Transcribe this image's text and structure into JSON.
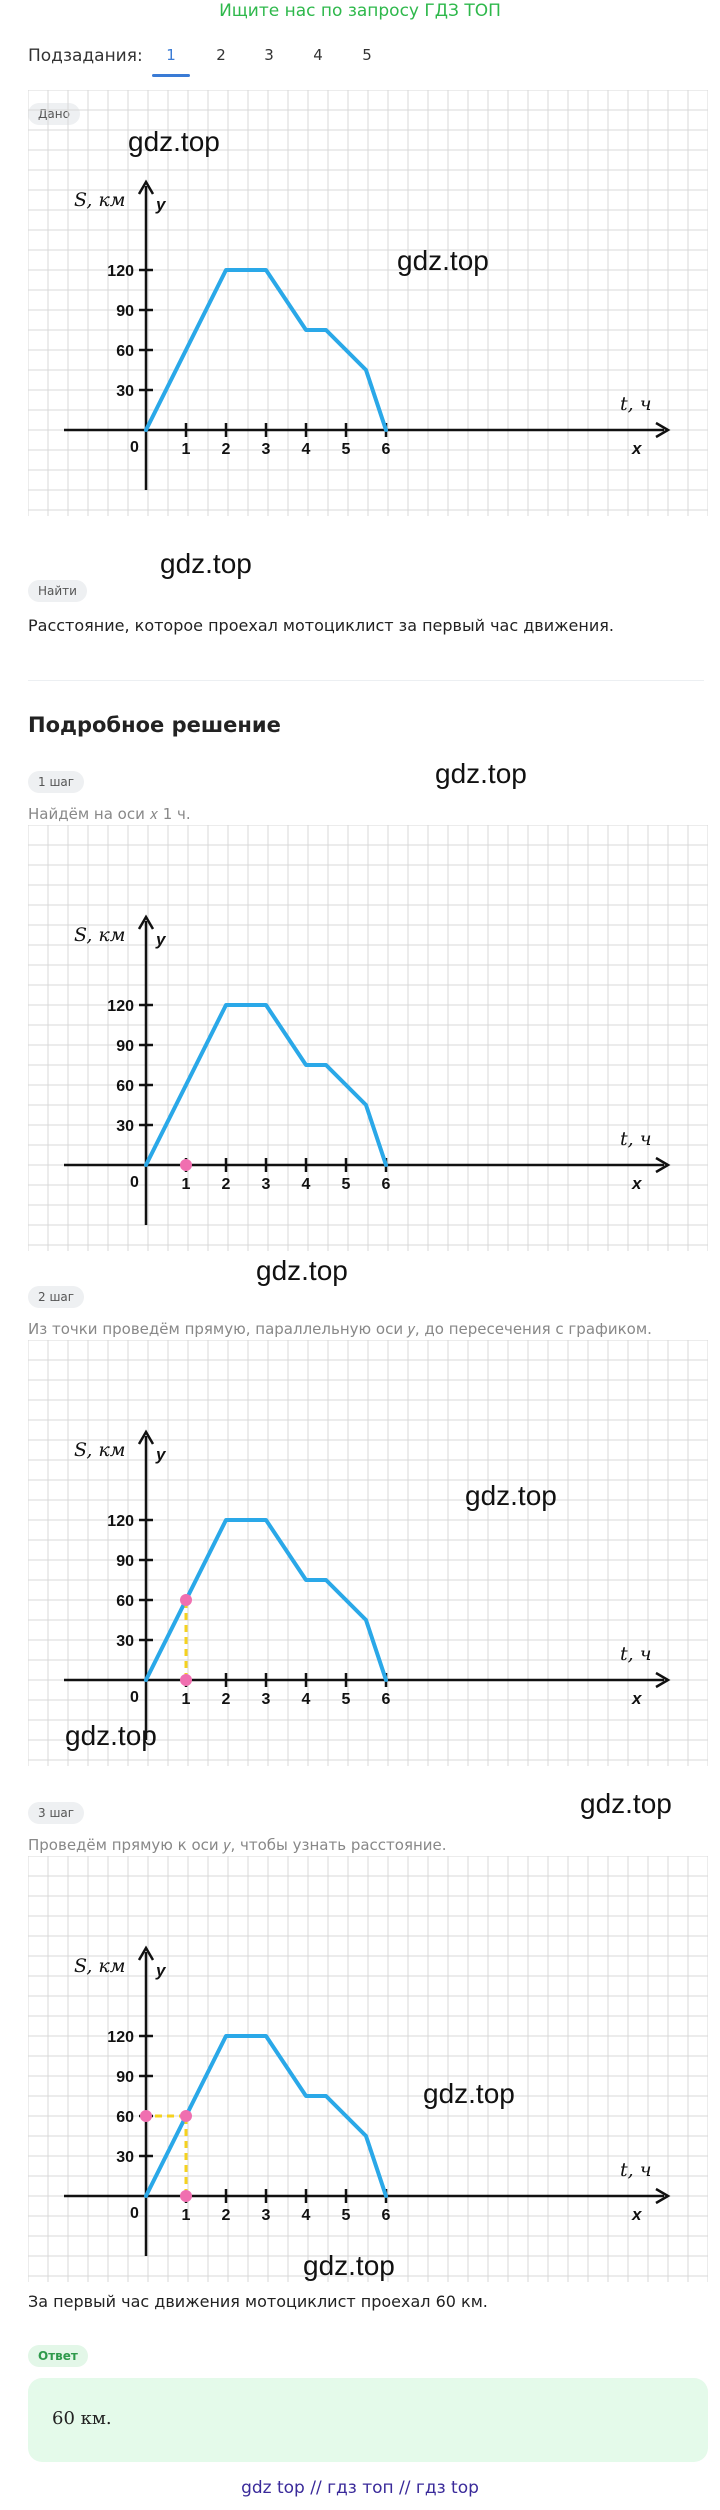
{
  "banner": "Ищите нас по запросу ГДЗ ТОП",
  "subtasks": {
    "label": "Подзадания:",
    "tabs": [
      "1",
      "2",
      "3",
      "4",
      "5"
    ],
    "active": 0
  },
  "given": {
    "chip": "Дано"
  },
  "find": {
    "chip": "Найти",
    "text": "Расстояние, которое проехал мотоциклист за первый час движения."
  },
  "solution": {
    "heading": "Подробное решение",
    "steps": [
      {
        "chip": "1 шаг",
        "text": "Найдём на оси 𝑥 1 ч."
      },
      {
        "chip": "2 шаг",
        "text": "Из точки проведём прямую, параллельную оси 𝑦, до пересечения с графиком."
      },
      {
        "chip": "3 шаг",
        "text": "Проведём прямую к оси 𝑦, чтобы узнать расстояние."
      }
    ],
    "conclusion": "За первый час движения мотоциклист проехал 60 км."
  },
  "answer": {
    "chip": "Ответ",
    "text": "60 км."
  },
  "watermarks": [
    "gdz.top",
    "gdz.top",
    "gdz.top",
    "gdz.top",
    "gdz.top",
    "gdz.top",
    "gdz.top",
    "gdz.top",
    "gdz.top",
    "gdz.top"
  ],
  "footer": "gdz top  //  гдз топ  //  гдз top",
  "colors": {
    "graph_line": "#2aa8e8",
    "highlight_point": "#f06fb0",
    "guide_line": "#f5d21f",
    "grid": "#d8d8d8",
    "axis": "#111111"
  },
  "chart_data": [
    {
      "type": "line",
      "y_axis_label": "S, км",
      "y_axis_letter": "y",
      "x_axis_label": "t, ч",
      "x_axis_letter": "x",
      "x_ticks": [
        "1",
        "2",
        "3",
        "4",
        "5",
        "6"
      ],
      "y_ticks": [
        "30",
        "60",
        "90",
        "120"
      ],
      "origin_label": "0",
      "grid": true,
      "series": [
        {
          "x": [
            0,
            2,
            3,
            4,
            4.5,
            5.5,
            6
          ],
          "y": [
            0,
            120,
            120,
            75,
            75,
            45,
            0
          ]
        }
      ],
      "highlights": []
    },
    {
      "type": "line",
      "y_axis_label": "S, км",
      "y_axis_letter": "y",
      "x_axis_label": "t, ч",
      "x_axis_letter": "x",
      "x_ticks": [
        "1",
        "2",
        "3",
        "4",
        "5",
        "6"
      ],
      "y_ticks": [
        "30",
        "60",
        "90",
        "120"
      ],
      "origin_label": "0",
      "grid": true,
      "series": [
        {
          "x": [
            0,
            2,
            3,
            4,
            4.5,
            5.5,
            6
          ],
          "y": [
            0,
            120,
            120,
            75,
            75,
            45,
            0
          ]
        }
      ],
      "highlights": [
        {
          "x": 1,
          "y": 0
        }
      ],
      "guides": []
    },
    {
      "type": "line",
      "y_axis_label": "S, км",
      "y_axis_letter": "y",
      "x_axis_label": "t, ч",
      "x_axis_letter": "x",
      "x_ticks": [
        "1",
        "2",
        "3",
        "4",
        "5",
        "6"
      ],
      "y_ticks": [
        "30",
        "60",
        "90",
        "120"
      ],
      "origin_label": "0",
      "grid": true,
      "series": [
        {
          "x": [
            0,
            2,
            3,
            4,
            4.5,
            5.5,
            6
          ],
          "y": [
            0,
            120,
            120,
            75,
            75,
            45,
            0
          ]
        }
      ],
      "highlights": [
        {
          "x": 1,
          "y": 0
        },
        {
          "x": 1,
          "y": 60
        }
      ],
      "guides": [
        {
          "from": [
            1,
            0
          ],
          "to": [
            1,
            60
          ]
        }
      ]
    },
    {
      "type": "line",
      "y_axis_label": "S, км",
      "y_axis_letter": "y",
      "x_axis_label": "t, ч",
      "x_axis_letter": "x",
      "x_ticks": [
        "1",
        "2",
        "3",
        "4",
        "5",
        "6"
      ],
      "y_ticks": [
        "30",
        "60",
        "90",
        "120"
      ],
      "origin_label": "0",
      "grid": true,
      "series": [
        {
          "x": [
            0,
            2,
            3,
            4,
            4.5,
            5.5,
            6
          ],
          "y": [
            0,
            120,
            120,
            75,
            75,
            45,
            0
          ]
        }
      ],
      "highlights": [
        {
          "x": 1,
          "y": 0
        },
        {
          "x": 1,
          "y": 60
        },
        {
          "x": 0,
          "y": 60
        }
      ],
      "guides": [
        {
          "from": [
            1,
            0
          ],
          "to": [
            1,
            60
          ]
        },
        {
          "from": [
            1,
            60
          ],
          "to": [
            0,
            60
          ]
        }
      ]
    }
  ]
}
